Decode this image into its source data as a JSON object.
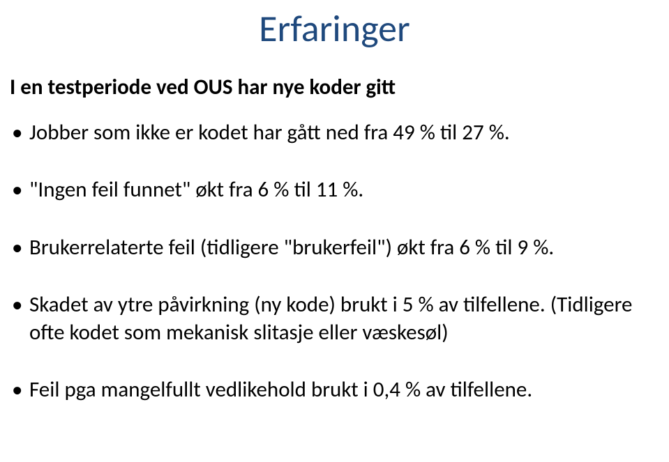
{
  "title": {
    "text": "Erfaringer",
    "color": "#1f497d",
    "fontsize": 54,
    "weight": "400"
  },
  "subtitle": {
    "text": "I en testperiode ved OUS har nye koder gitt",
    "color": "#000000",
    "fontsize": 31,
    "weight": "bold"
  },
  "bullets": {
    "items": [
      "Jobber som ikke er kodet har gått ned fra 49 % til 27 %.",
      "\"Ingen feil funnet\" økt fra 6 % til 11 %.",
      "Brukerrelaterte feil (tidligere \"brukerfeil\") økt fra 6 % til 9 %.",
      "Skadet av ytre påvirkning (ny kode) brukt i 5 % av tilfellene. (Tidligere ofte kodet som mekanisk slitasje eller væskesøl)",
      "Feil pga mangelfullt vedlikehold brukt i 0,4 % av tilfellene."
    ],
    "color": "#000000",
    "fontsize": 31,
    "bullet_color": "#000000"
  },
  "background_color": "#ffffff"
}
